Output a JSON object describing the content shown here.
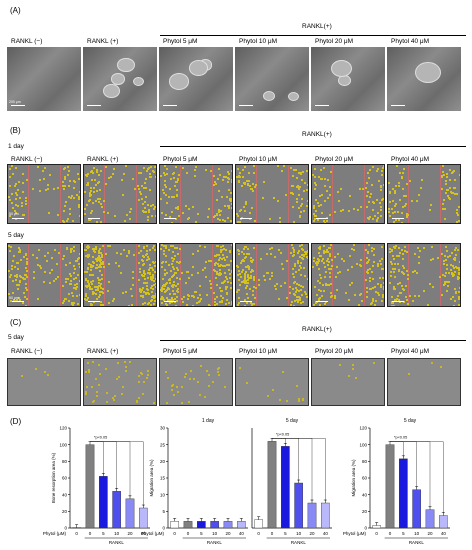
{
  "panels": {
    "A": {
      "label": "(A)",
      "group_header": "RANKL(+)",
      "columns": [
        "RANKL (−)",
        "RANKL (+)",
        "Phytol 5 μM",
        "Phytol 10 μM",
        "Phytol 20 μM",
        "Phytol 40 μM"
      ],
      "scale_text": "200 μm"
    },
    "B": {
      "label": "(B)",
      "group_header": "RANKL(+)",
      "row1_label": "1 day",
      "row2_label": "5 day",
      "columns": [
        "RANKL (−)",
        "RANKL (+)",
        "Phytol 5 μM",
        "Phytol 10 μM",
        "Phytol 20 μM",
        "Phytol 40 μM"
      ],
      "scale_text": "50 μm"
    },
    "C": {
      "label": "(C)",
      "day_label": "5 day",
      "group_header": "RANKL(+)",
      "columns": [
        "RANKL (−)",
        "RANKL (+)",
        "Phytol 5 μM",
        "Phytol 10 μM",
        "Phytol 20 μM",
        "Phytol 40 μM"
      ]
    },
    "D": {
      "label": "(D)"
    }
  },
  "chart_data": [
    {
      "type": "bar",
      "title": "",
      "ylabel": "Bone resorption area (%)",
      "xlabel": "Phytol (μM)",
      "x_group_label": "RANKL",
      "categories": [
        "0",
        "0",
        "5",
        "10",
        "20",
        "40"
      ],
      "values": [
        0.5,
        100,
        62,
        44,
        35,
        24
      ],
      "ylim": [
        0,
        120
      ],
      "yticks": [
        0,
        20,
        40,
        60,
        80,
        100,
        120
      ],
      "significance": "*p<0.05",
      "colors": [
        "#ffffff",
        "#808080",
        "#1a1adf",
        "#4f4fee",
        "#8a8af6",
        "#b8b8fa"
      ]
    },
    {
      "type": "bar",
      "title": "1 day",
      "ylabel": "Migration area (%)",
      "xlabel": "Phytol (μM)",
      "x_group_label": "RANKL",
      "categories": [
        "0",
        "0",
        "5",
        "10",
        "20",
        "40"
      ],
      "values": [
        2,
        2,
        2,
        2,
        2,
        2
      ],
      "ylim": [
        0,
        30
      ],
      "yticks": [
        0,
        5,
        10,
        15,
        20,
        25,
        30
      ],
      "colors": [
        "#ffffff",
        "#808080",
        "#1a1adf",
        "#4f4fee",
        "#8a8af6",
        "#b8b8fa"
      ]
    },
    {
      "type": "bar",
      "title": "5 day",
      "ylabel": "",
      "xlabel": "",
      "x_group_label": "RANKL",
      "categories": [
        "0",
        "0",
        "5",
        "10",
        "20",
        "40"
      ],
      "values": [
        2.5,
        26,
        24.5,
        13.5,
        7.5,
        7.5
      ],
      "ylim": [
        0,
        30
      ],
      "significance": "*p<0.05",
      "colors": [
        "#ffffff",
        "#808080",
        "#1a1adf",
        "#4f4fee",
        "#8a8af6",
        "#b8b8fa"
      ]
    },
    {
      "type": "bar",
      "title": "5 day",
      "ylabel": "Migration area (%)",
      "xlabel": "Phytol (μM)",
      "x_group_label": "RANKL",
      "categories": [
        "0",
        "0",
        "5",
        "10",
        "20",
        "40"
      ],
      "values": [
        3,
        100,
        83,
        46,
        22,
        15
      ],
      "ylim": [
        0,
        120
      ],
      "yticks": [
        0,
        20,
        40,
        60,
        80,
        100,
        120
      ],
      "significance": "*p<0.05",
      "colors": [
        "#ffffff",
        "#808080",
        "#1a1adf",
        "#4f4fee",
        "#8a8af6",
        "#b8b8fa"
      ]
    }
  ]
}
